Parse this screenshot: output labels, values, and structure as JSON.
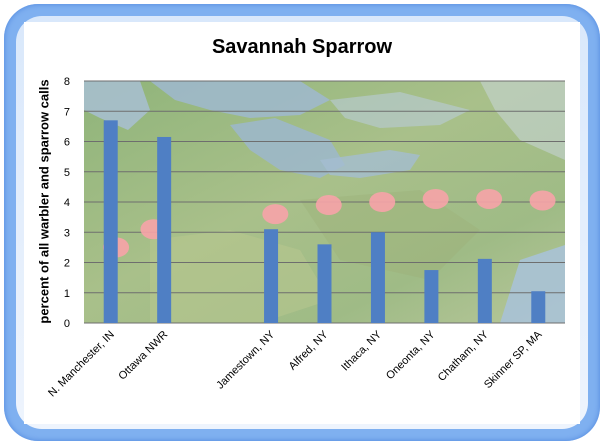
{
  "chart_data": {
    "type": "bar",
    "title": "Savannah Sparrow",
    "xlabel": "",
    "ylabel": "percent of all warbler and sparrow calls",
    "ylim": [
      0,
      8
    ],
    "yticks": [
      "0",
      "1",
      "2",
      "3",
      "4",
      "5",
      "6",
      "7",
      "8"
    ],
    "grid": true,
    "legend": "none",
    "categories": [
      "N. Manchester, IN",
      "Ottawa NWR",
      "",
      "Jamestown, NY",
      "Alfred, NY",
      "Ithaca, NY",
      "Oneonta, NY",
      "Chatham, NY",
      "Skinner SP, MA"
    ],
    "values": [
      6.7,
      6.15,
      null,
      3.1,
      2.6,
      3.0,
      1.75,
      2.12,
      1.05
    ],
    "colors": {
      "bar": "#4f7fc4",
      "gridline": "#6e6e6e",
      "site_marker": "#f7a3a8",
      "frame": "#7fb0f0"
    },
    "background_image": "topographic-map-great-lakes-northeast"
  }
}
